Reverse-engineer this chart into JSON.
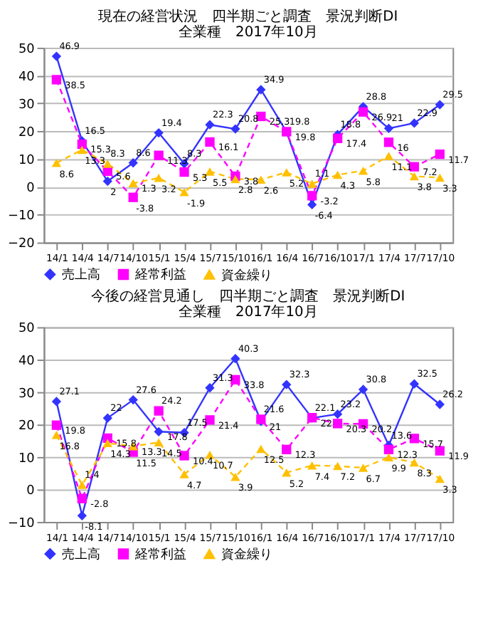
{
  "chart_data": [
    {
      "type": "line",
      "title": "現在の経営状況　四半期ごと調査　景況判断DI",
      "subtitle": "全業種　2017年10月",
      "categories": [
        "14/1",
        "14/4",
        "14/7",
        "14/10",
        "15/1",
        "15/4",
        "15/7",
        "15/10",
        "16/1",
        "16/4",
        "16/7",
        "16/10",
        "17/1",
        "17/4",
        "17/7",
        "17/10"
      ],
      "series": [
        {
          "name": "売上高",
          "color": "#3333ff",
          "marker": "diamond",
          "line_style": "solid",
          "values": [
            46.9,
            16.5,
            2,
            8.6,
            19.4,
            8.3,
            22.3,
            20.8,
            34.9,
            19.8,
            -6.4,
            18.8,
            28.8,
            21,
            22.9,
            29.5
          ]
        },
        {
          "name": "経常利益",
          "color": "#ff00ff",
          "marker": "square",
          "line_style": "dashed",
          "values": [
            38.5,
            15.3,
            5.6,
            -3.8,
            11.3,
            5.3,
            16.1,
            3.8,
            25.3,
            19.8,
            -3.2,
            17.4,
            26.9,
            16,
            7.2,
            11.7
          ]
        },
        {
          "name": "資金繰り",
          "color": "#ffc000",
          "marker": "triangle",
          "line_style": "dashed",
          "values": [
            8.6,
            13.3,
            8.3,
            1.3,
            3.2,
            -1.9,
            5.5,
            2.8,
            2.6,
            5.2,
            1.1,
            4.3,
            5.8,
            11.1,
            3.8,
            3.3
          ]
        }
      ],
      "ylim": [
        -20,
        50
      ],
      "yticks": [
        -20,
        -10,
        0,
        10,
        20,
        30,
        40,
        50
      ],
      "grid": "y",
      "legend": "bottom",
      "data_labels": true
    },
    {
      "type": "line",
      "title": "今後の経営見通し　四半期ごと調査　景況判断DI",
      "subtitle": "全業種　2017年10月",
      "categories": [
        "14/1",
        "14/4",
        "14/7",
        "14/10",
        "15/1",
        "15/4",
        "15/7",
        "15/10",
        "16/1",
        "16/4",
        "16/7",
        "16/10",
        "17/1",
        "17/4",
        "17/7",
        "17/10"
      ],
      "series": [
        {
          "name": "売上高",
          "color": "#3333ff",
          "marker": "diamond",
          "line_style": "solid",
          "values": [
            27.1,
            -8.1,
            22,
            27.6,
            17.8,
            17.5,
            31.3,
            40.3,
            21,
            32.3,
            22,
            23.2,
            30.8,
            13.6,
            32.5,
            26.2
          ]
        },
        {
          "name": "経常利益",
          "color": "#ff00ff",
          "marker": "square",
          "line_style": "dashed",
          "values": [
            19.8,
            -2.8,
            15.8,
            11.5,
            24.2,
            10.4,
            21.4,
            33.8,
            21.6,
            12.3,
            22.1,
            20.3,
            20.2,
            12.3,
            15.7,
            11.9
          ]
        },
        {
          "name": "資金繰り",
          "color": "#ffc000",
          "marker": "triangle",
          "line_style": "dashed",
          "values": [
            16.8,
            1.4,
            14.3,
            13.3,
            14.5,
            4.7,
            10.7,
            3.9,
            12.5,
            5.2,
            7.4,
            7.2,
            6.7,
            9.9,
            8.3,
            3.3
          ]
        }
      ],
      "ylim": [
        -10,
        50
      ],
      "yticks": [
        -10,
        0,
        10,
        20,
        30,
        40,
        50
      ],
      "grid": "y",
      "legend": "bottom",
      "data_labels": true
    }
  ]
}
